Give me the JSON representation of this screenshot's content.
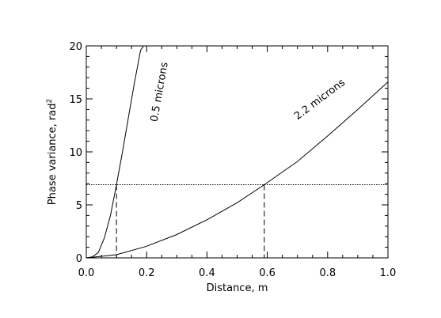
{
  "chart_data": {
    "type": "line",
    "xlabel": "Distance, m",
    "ylabel_main": "Phase variance, rad",
    "ylabel_sup": "2",
    "xlim": [
      0.0,
      1.0
    ],
    "ylim": [
      0,
      20
    ],
    "x_ticks": [
      "0.0",
      "0.2",
      "0.4",
      "0.6",
      "0.8",
      "1.0"
    ],
    "y_ticks": [
      "0",
      "5",
      "10",
      "15",
      "20"
    ],
    "series": [
      {
        "name": "0.5 microns",
        "x": [
          0.0,
          0.02,
          0.04,
          0.06,
          0.08,
          0.1,
          0.12,
          0.14,
          0.16,
          0.18,
          0.19
        ],
        "y": [
          0.0,
          0.1,
          0.5,
          1.9,
          4.0,
          6.9,
          10.0,
          13.3,
          16.6,
          19.6,
          20.0
        ]
      },
      {
        "name": "2.2 microns",
        "x": [
          0.0,
          0.1,
          0.2,
          0.3,
          0.4,
          0.5,
          0.59,
          0.7,
          0.8,
          0.9,
          1.0
        ],
        "y": [
          0.0,
          0.3,
          1.1,
          2.2,
          3.6,
          5.2,
          6.9,
          9.1,
          11.5,
          14.0,
          16.6
        ]
      }
    ],
    "threshold_y": 6.9,
    "crossings_x": [
      0.1,
      0.59
    ],
    "annotations": [
      {
        "text": "0.5 microns",
        "series": 0
      },
      {
        "text": "2.2 microns",
        "series": 1
      }
    ],
    "grid": false,
    "legend": "none"
  }
}
